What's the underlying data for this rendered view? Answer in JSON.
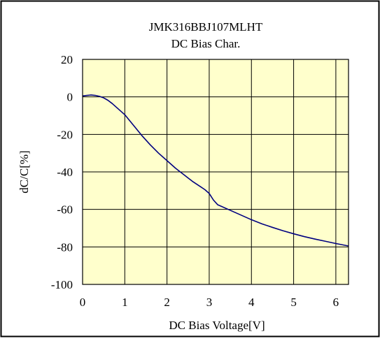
{
  "chart_data": {
    "type": "line",
    "title": "JMK316BBJ107MLHT",
    "subtitle": "DC Bias Char.",
    "xlabel": "DC Bias Voltage[V]",
    "ylabel": "dC/C[%]",
    "xlim": [
      0,
      6.3
    ],
    "ylim": [
      -100,
      20
    ],
    "xticks": [
      0,
      1,
      2,
      3,
      4,
      5,
      6
    ],
    "yticks": [
      20,
      0,
      -20,
      -40,
      -60,
      -80,
      -100
    ],
    "grid": true,
    "legend": "none",
    "series": [
      {
        "x": [
          0,
          0.1,
          0.2,
          0.3,
          0.4,
          0.5,
          0.6,
          0.7,
          0.8,
          0.9,
          1.0,
          1.2,
          1.4,
          1.6,
          1.8,
          2.0,
          2.2,
          2.4,
          2.6,
          2.8,
          2.9,
          3.0,
          3.1,
          3.2,
          3.3,
          3.4,
          3.6,
          3.8,
          4.0,
          4.25,
          4.5,
          4.75,
          5.0,
          5.25,
          5.5,
          5.75,
          6.0,
          6.3
        ],
        "y": [
          0.5,
          0.8,
          1.0,
          0.8,
          0.3,
          -0.5,
          -1.8,
          -3.5,
          -5.5,
          -7.5,
          -9.5,
          -15,
          -20.5,
          -25.5,
          -30,
          -34,
          -38,
          -41.5,
          -45,
          -48,
          -49.5,
          -51.5,
          -55,
          -57.5,
          -58.5,
          -59.5,
          -61.5,
          -63.5,
          -65.5,
          -67.7,
          -69.6,
          -71.4,
          -73,
          -74.5,
          -75.8,
          -77,
          -78.2,
          -79.5
        ]
      }
    ]
  },
  "colors": {
    "plot_background": "#ffffcc",
    "series_line": "#000080",
    "grid": "#000000"
  }
}
